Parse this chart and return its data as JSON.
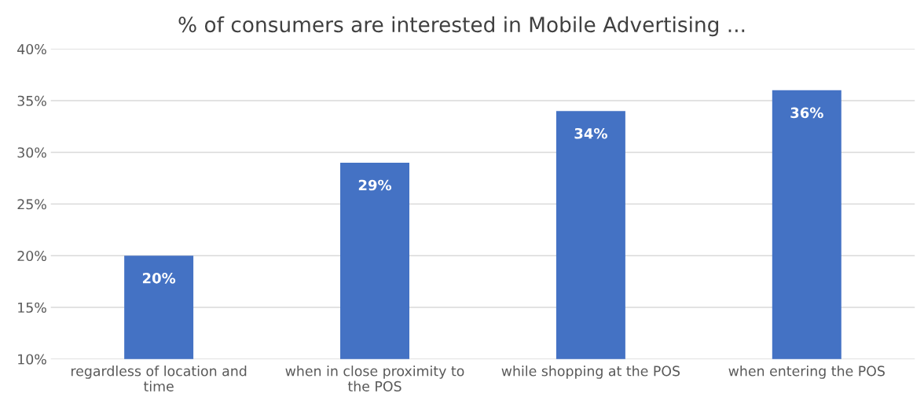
{
  "chart_data": {
    "type": "bar",
    "title": "% of consumers are interested in Mobile Advertising ...",
    "categories": [
      "regardless of location and time",
      "when in close proximity to the POS",
      "while shopping at the POS",
      "when entering the POS"
    ],
    "values": [
      20,
      29,
      34,
      36
    ],
    "value_labels": [
      "20%",
      "29%",
      "34%",
      "36%"
    ],
    "color": "#4472c4",
    "ylim": [
      10,
      40
    ],
    "yticks": [
      {
        "value": 10,
        "label": "10%"
      },
      {
        "value": 15,
        "label": "15%"
      },
      {
        "value": 20,
        "label": "20%"
      },
      {
        "value": 25,
        "label": "25%"
      },
      {
        "value": 30,
        "label": "30%"
      },
      {
        "value": 35,
        "label": "35%"
      },
      {
        "value": 40,
        "label": "40%"
      }
    ],
    "grid": "y"
  }
}
